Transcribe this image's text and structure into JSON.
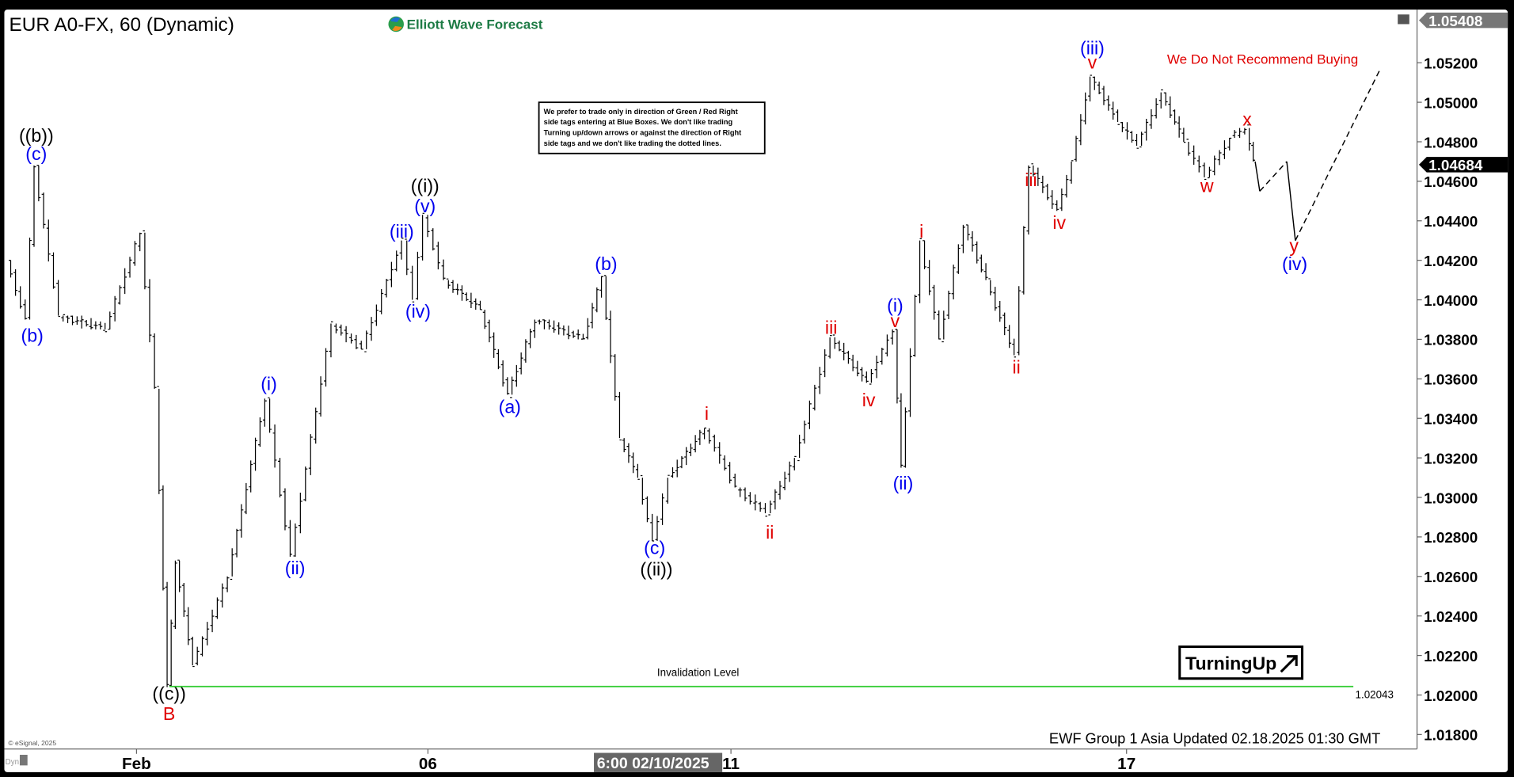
{
  "header": {
    "title": "EUR A0-FX, 60 (Dynamic)",
    "logo_text": "Elliott Wave Forecast"
  },
  "disclaimer": {
    "lines": [
      "We prefer to trade only in direction of Green / Red Right",
      "side tags entering at Blue Boxes. We don't like trading",
      "Turning up/down arrows or against the direction of Right",
      "side tags and we don't like trading the dotted lines."
    ]
  },
  "recommendation": "We Do Not Recommend Buying",
  "invalidation": {
    "label": "Invalidation Level",
    "value": "1.02043",
    "price": 1.02043,
    "color": "#33cc33"
  },
  "turning_badge": "TurningUp",
  "footer": "EWF Group 1 Asia Updated 02.18.2025  01:30 GMT",
  "copyright": "© eSignal, 2025",
  "dyn_label": "Dyn",
  "crosshair_time": "6:00 02/10/2025",
  "colors": {
    "blue_label": "#0000ee",
    "red_label": "#e00000",
    "black_label": "#000000",
    "bars": "#000000"
  },
  "chart_data": {
    "type": "ohlc-line",
    "symbol": "EUR A0-FX",
    "interval": "60",
    "ylim": [
      1.0175,
      1.0542
    ],
    "yticks": [
      "1.05200",
      "1.05000",
      "1.04800",
      "1.04600",
      "1.04400",
      "1.04200",
      "1.04000",
      "1.03800",
      "1.03600",
      "1.03400",
      "1.03200",
      "1.03000",
      "1.02800",
      "1.02600",
      "1.02400",
      "1.02200",
      "1.02000",
      "1.01800"
    ],
    "ytick_values": [
      1.052,
      1.05,
      1.048,
      1.046,
      1.044,
      1.042,
      1.04,
      1.038,
      1.036,
      1.034,
      1.032,
      1.03,
      1.028,
      1.026,
      1.024,
      1.022,
      1.02,
      1.018
    ],
    "xticks": [
      {
        "label": "Feb",
        "day": 1
      },
      {
        "label": "06",
        "day": 6
      },
      {
        "label": "11",
        "day": 11
      },
      {
        "label": "17",
        "day": 17
      }
    ],
    "top_price": "1.05408",
    "last_price": "1.04684",
    "last_price_value": 1.04684,
    "price_swings_day_of_feb": [
      [
        -1.2,
        1.042
      ],
      [
        -0.87,
        1.039
      ],
      [
        -0.72,
        1.0468
      ],
      [
        -0.3,
        1.0392
      ],
      [
        0.5,
        1.0385
      ],
      [
        1.1,
        1.0434
      ],
      [
        1.35,
        1.0355
      ],
      [
        1.56,
        1.0204
      ],
      [
        1.7,
        1.0268
      ],
      [
        2.0,
        1.0215
      ],
      [
        2.6,
        1.026
      ],
      [
        3.24,
        1.035
      ],
      [
        3.68,
        1.027
      ],
      [
        4.38,
        1.0388
      ],
      [
        4.9,
        1.0375
      ],
      [
        5.59,
        1.043
      ],
      [
        5.78,
        1.04
      ],
      [
        5.95,
        1.0443
      ],
      [
        6.3,
        1.041
      ],
      [
        6.9,
        1.0395
      ],
      [
        7.35,
        1.0352
      ],
      [
        7.8,
        1.039
      ],
      [
        8.6,
        1.038
      ],
      [
        8.9,
        1.0412
      ],
      [
        9.2,
        1.033
      ],
      [
        9.5,
        1.031
      ],
      [
        9.74,
        1.0278
      ],
      [
        10.0,
        1.031
      ],
      [
        10.6,
        1.0335
      ],
      [
        11.1,
        1.0305
      ],
      [
        11.56,
        1.0292
      ],
      [
        12.0,
        1.032
      ],
      [
        12.54,
        1.0381
      ],
      [
        13.09,
        1.0358
      ],
      [
        13.49,
        1.0385
      ],
      [
        13.61,
        1.0315
      ],
      [
        13.9,
        1.043
      ],
      [
        14.19,
        1.038
      ],
      [
        14.56,
        1.0438
      ],
      [
        14.9,
        1.041
      ],
      [
        15.33,
        1.0372
      ],
      [
        15.55,
        1.0468
      ],
      [
        15.98,
        1.0445
      ],
      [
        16.2,
        1.047
      ],
      [
        16.48,
        1.0513
      ],
      [
        16.9,
        1.049
      ],
      [
        17.19,
        1.0478
      ],
      [
        17.56,
        1.0505
      ],
      [
        17.9,
        1.048
      ],
      [
        18.22,
        1.0462
      ],
      [
        18.6,
        1.0482
      ],
      [
        18.83,
        1.0487
      ],
      [
        18.95,
        1.047
      ]
    ],
    "projection": [
      {
        "from": [
          18.95,
          1.047
        ],
        "to": [
          19.02,
          1.0455
        ],
        "style": "solid"
      },
      {
        "from": [
          19.02,
          1.0455
        ],
        "to": [
          19.43,
          1.047
        ],
        "style": "dashed"
      },
      {
        "from": [
          19.43,
          1.047
        ],
        "to": [
          19.56,
          1.043
        ],
        "style": "solid"
      },
      {
        "from": [
          19.56,
          1.043
        ],
        "to": [
          20.85,
          1.0517
        ],
        "style": "dashed"
      }
    ],
    "wave_labels": [
      {
        "text": "((b))",
        "day": -0.72,
        "price": 1.04834,
        "color": "black"
      },
      {
        "text": "(c)",
        "day": -0.72,
        "price": 1.04741,
        "color": "blue"
      },
      {
        "text": "(b)",
        "day": -0.79,
        "price": 1.03822,
        "color": "blue"
      },
      {
        "text": "((c))",
        "day": 1.56,
        "price": 1.0201,
        "color": "black"
      },
      {
        "text": "B",
        "day": 1.56,
        "price": 1.01907,
        "color": "red"
      },
      {
        "text": "(i)",
        "day": 3.27,
        "price": 1.03578,
        "color": "blue"
      },
      {
        "text": "(ii)",
        "day": 3.72,
        "price": 1.02645,
        "color": "blue"
      },
      {
        "text": "(iii)",
        "day": 5.55,
        "price": 1.0435,
        "color": "blue"
      },
      {
        "text": "(iv)",
        "day": 5.83,
        "price": 1.03945,
        "color": "blue"
      },
      {
        "text": "(v)",
        "day": 5.95,
        "price": 1.04477,
        "color": "blue"
      },
      {
        "text": "((i))",
        "day": 5.95,
        "price": 1.0458,
        "color": "black"
      },
      {
        "text": "(a)",
        "day": 7.35,
        "price": 1.03461,
        "color": "blue"
      },
      {
        "text": "(b)",
        "day": 8.94,
        "price": 1.04184,
        "color": "blue"
      },
      {
        "text": "(c)",
        "day": 9.74,
        "price": 1.02748,
        "color": "blue"
      },
      {
        "text": "((ii))",
        "day": 9.77,
        "price": 1.0264,
        "color": "black"
      },
      {
        "text": "i",
        "day": 10.6,
        "price": 1.03427,
        "color": "red"
      },
      {
        "text": "ii",
        "day": 11.59,
        "price": 1.02826,
        "color": "red"
      },
      {
        "text": "iii",
        "day": 12.52,
        "price": 1.03862,
        "color": "red"
      },
      {
        "text": "iv",
        "day": 13.09,
        "price": 1.03495,
        "color": "red"
      },
      {
        "text": "(i)",
        "day": 13.49,
        "price": 1.03974,
        "color": "blue"
      },
      {
        "text": "v",
        "day": 13.49,
        "price": 1.03896,
        "color": "red"
      },
      {
        "text": "(ii)",
        "day": 13.61,
        "price": 1.03075,
        "color": "blue"
      },
      {
        "text": "i",
        "day": 13.89,
        "price": 1.0435,
        "color": "red"
      },
      {
        "text": "ii",
        "day": 15.33,
        "price": 1.03661,
        "color": "red"
      },
      {
        "text": "iii",
        "day": 15.55,
        "price": 1.04609,
        "color": "red"
      },
      {
        "text": "iv",
        "day": 15.98,
        "price": 1.04394,
        "color": "red"
      },
      {
        "text": "(iii)",
        "day": 16.48,
        "price": 1.05278,
        "color": "blue"
      },
      {
        "text": "v",
        "day": 16.48,
        "price": 1.05205,
        "color": "red"
      },
      {
        "text": "w",
        "day": 18.22,
        "price": 1.0458,
        "color": "red"
      },
      {
        "text": "x",
        "day": 18.83,
        "price": 1.04917,
        "color": "red"
      },
      {
        "text": "y",
        "day": 19.54,
        "price": 1.04277,
        "color": "red"
      },
      {
        "text": "(iv)",
        "day": 19.55,
        "price": 1.04184,
        "color": "blue"
      }
    ]
  }
}
